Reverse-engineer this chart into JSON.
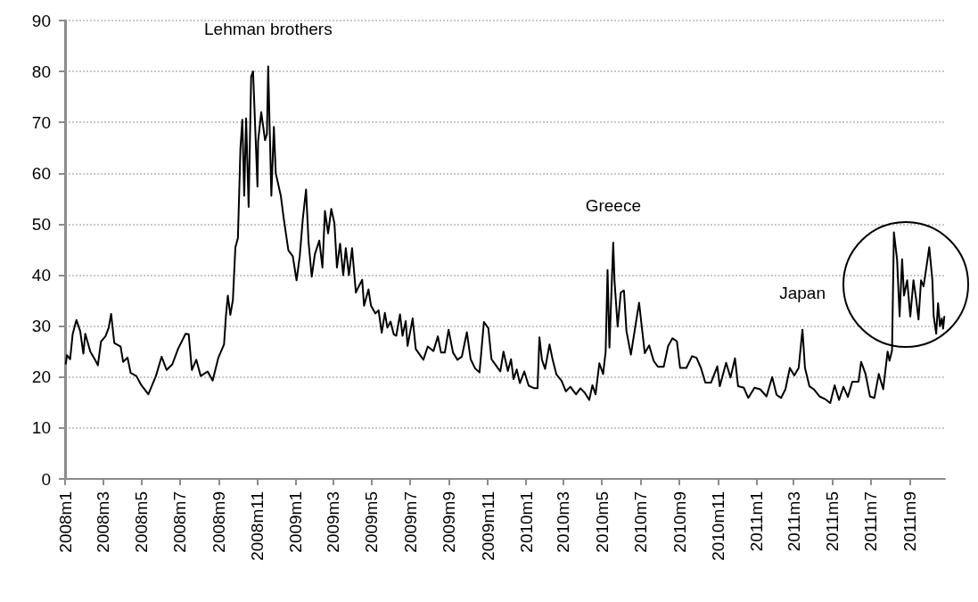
{
  "chart_data": {
    "type": "line",
    "x": [
      "2008-01-02",
      "2008-01-04",
      "2008-01-09",
      "2008-01-13",
      "2008-01-19",
      "2008-01-25",
      "2008-01-30",
      "2008-02-02",
      "2008-02-10",
      "2008-02-18",
      "2008-02-22",
      "2008-02-27",
      "2008-03-05",
      "2008-03-10",
      "2008-03-14",
      "2008-03-19",
      "2008-03-29",
      "2008-04-02",
      "2008-04-09",
      "2008-04-14",
      "2008-04-23",
      "2008-05-01",
      "2008-05-12",
      "2008-05-24",
      "2008-06-02",
      "2008-06-10",
      "2008-06-19",
      "2008-06-28",
      "2008-07-10",
      "2008-07-15",
      "2008-07-20",
      "2008-07-27",
      "2008-08-03",
      "2008-08-14",
      "2008-08-22",
      "2008-08-31",
      "2008-09-09",
      "2008-09-12",
      "2008-09-15",
      "2008-09-19",
      "2008-09-23",
      "2008-09-27",
      "2008-10-01",
      "2008-10-05",
      "2008-10-08",
      "2008-10-11",
      "2008-10-14",
      "2008-10-18",
      "2008-10-22",
      "2008-10-25",
      "2008-11-01",
      "2008-11-02",
      "2008-11-07",
      "2008-11-13",
      "2008-11-16",
      "2008-11-18",
      "2008-11-23",
      "2008-11-27",
      "2008-11-30",
      "2008-12-08",
      "2008-12-13",
      "2008-12-20",
      "2008-12-27",
      "2009-01-02",
      "2009-01-07",
      "2009-01-12",
      "2009-01-17",
      "2009-01-21",
      "2009-01-26",
      "2009-01-31",
      "2009-02-07",
      "2009-02-12",
      "2009-02-16",
      "2009-02-21",
      "2009-02-26",
      "2009-03-03",
      "2009-03-07",
      "2009-03-12",
      "2009-03-17",
      "2009-03-21",
      "2009-03-26",
      "2009-03-31",
      "2009-04-06",
      "2009-04-09",
      "2009-04-16",
      "2009-04-19",
      "2009-04-26",
      "2009-04-30",
      "2009-05-07",
      "2009-05-12",
      "2009-05-17",
      "2009-05-22",
      "2009-05-26",
      "2009-05-31",
      "2009-06-05",
      "2009-06-09",
      "2009-06-15",
      "2009-06-19",
      "2009-06-24",
      "2009-06-27",
      "2009-07-05",
      "2009-07-10",
      "2009-07-22",
      "2009-07-29",
      "2009-08-07",
      "2009-08-14",
      "2009-08-19",
      "2009-08-25",
      "2009-08-31",
      "2009-09-07",
      "2009-09-14",
      "2009-09-21",
      "2009-09-29",
      "2009-10-05",
      "2009-10-12",
      "2009-10-19",
      "2009-10-26",
      "2009-11-02",
      "2009-11-07",
      "2009-11-14",
      "2009-11-21",
      "2009-11-26",
      "2009-12-03",
      "2009-12-08",
      "2009-12-12",
      "2009-12-17",
      "2009-12-22",
      "2009-12-29",
      "2010-01-05",
      "2010-01-14",
      "2010-01-19",
      "2010-01-22",
      "2010-01-26",
      "2010-01-31",
      "2010-02-07",
      "2010-02-12",
      "2010-02-18",
      "2010-02-26",
      "2010-03-05",
      "2010-03-12",
      "2010-03-21",
      "2010-03-28",
      "2010-04-04",
      "2010-04-11",
      "2010-04-16",
      "2010-04-21",
      "2010-04-27",
      "2010-05-03",
      "2010-05-07",
      "2010-05-10",
      "2010-05-13",
      "2010-05-19",
      "2010-05-21",
      "2010-05-26",
      "2010-05-31",
      "2010-06-05",
      "2010-06-09",
      "2010-06-16",
      "2010-06-23",
      "2010-06-29",
      "2010-07-03",
      "2010-07-08",
      "2010-07-15",
      "2010-07-22",
      "2010-07-29",
      "2010-08-07",
      "2010-08-14",
      "2010-08-21",
      "2010-08-28",
      "2010-09-02",
      "2010-09-12",
      "2010-09-21",
      "2010-09-28",
      "2010-10-05",
      "2010-10-12",
      "2010-10-21",
      "2010-10-31",
      "2010-11-04",
      "2010-11-14",
      "2010-11-21",
      "2010-11-28",
      "2010-12-03",
      "2010-12-12",
      "2010-12-19",
      "2010-12-29",
      "2011-01-07",
      "2011-01-17",
      "2011-01-26",
      "2011-02-02",
      "2011-02-09",
      "2011-02-16",
      "2011-02-23",
      "2011-03-02",
      "2011-03-09",
      "2011-03-15",
      "2011-03-19",
      "2011-03-26",
      "2011-04-02",
      "2011-04-11",
      "2011-04-21",
      "2011-04-28",
      "2011-05-05",
      "2011-05-12",
      "2011-05-19",
      "2011-05-26",
      "2011-06-02",
      "2011-06-12",
      "2011-06-16",
      "2011-06-23",
      "2011-06-30",
      "2011-07-07",
      "2011-07-14",
      "2011-07-21",
      "2011-07-28",
      "2011-07-31",
      "2011-08-04",
      "2011-08-07",
      "2011-08-12",
      "2011-08-16",
      "2011-08-20",
      "2011-08-23",
      "2011-08-28",
      "2011-09-02",
      "2011-09-07",
      "2011-09-11",
      "2011-09-15",
      "2011-09-19",
      "2011-09-23",
      "2011-09-28",
      "2011-10-02",
      "2011-10-07",
      "2011-10-09",
      "2011-10-13",
      "2011-10-16",
      "2011-10-19",
      "2011-10-22",
      "2011-10-24",
      "2011-10-26"
    ],
    "series": [
      {
        "color": "#000000",
        "values": [
          22.5,
          24.3,
          23.5,
          28.4,
          31.2,
          29,
          24.6,
          28.5,
          25,
          23.3,
          22.3,
          27,
          28,
          29.6,
          32.4,
          26.7,
          26,
          23,
          23.8,
          20.8,
          20.2,
          18.4,
          16.6,
          20.2,
          24,
          21.4,
          22.5,
          25.5,
          28.5,
          28.4,
          21.4,
          23.4,
          20.2,
          21.1,
          19.3,
          23.8,
          26.4,
          32,
          36,
          32.2,
          35.1,
          45.5,
          47.3,
          64.9,
          70.5,
          55.6,
          70.8,
          53.4,
          79,
          80,
          57.4,
          66.3,
          72,
          66.5,
          67.7,
          81,
          55.6,
          69.1,
          60,
          55.6,
          50.8,
          44.9,
          43.7,
          39,
          43.7,
          51.2,
          56.8,
          46.5,
          39.7,
          44.1,
          46.8,
          41.5,
          52.6,
          48.2,
          53,
          50.2,
          41.5,
          46.2,
          40,
          45.3,
          40,
          45.3,
          36.6,
          37.4,
          39.1,
          34,
          37.2,
          34,
          32.5,
          33.1,
          28.7,
          32.6,
          29.7,
          30.9,
          28.4,
          28.1,
          32.3,
          28.1,
          31,
          26.1,
          31.5,
          25.5,
          23.4,
          26,
          25.1,
          28,
          24.8,
          24.8,
          29.3,
          24.8,
          23.4,
          24,
          28.8,
          23.5,
          21.7,
          20.9,
          30.8,
          29.6,
          23.5,
          22.3,
          21.1,
          25,
          21.2,
          23.5,
          19.6,
          21.5,
          18.8,
          21.1,
          18.3,
          17.8,
          17.8,
          27.8,
          23.4,
          21.6,
          26.4,
          23.4,
          20.5,
          19.3,
          17.2,
          18.1,
          16.6,
          17.8,
          16.9,
          15.5,
          18.4,
          16.6,
          22.7,
          20.6,
          25,
          41,
          25.8,
          46.4,
          39,
          29.9,
          36.6,
          37,
          29,
          24.4,
          29.9,
          34.6,
          30.2,
          24.7,
          26.2,
          23.2,
          22,
          22,
          26.1,
          27.6,
          27,
          21.8,
          21.8,
          24.1,
          23.8,
          21.8,
          18.9,
          18.9,
          22.1,
          18.2,
          22.8,
          19.9,
          23.7,
          18.2,
          17.9,
          15.9,
          17.9,
          17.6,
          16.2,
          20,
          16.5,
          15.9,
          17.6,
          21.8,
          20.3,
          21.8,
          29.3,
          21.8,
          18.2,
          17.6,
          16.2,
          15.6,
          14.9,
          18.4,
          15.5,
          18.1,
          16.1,
          19.1,
          19.1,
          23,
          20.6,
          16.2,
          15.9,
          20.6,
          17.6,
          25,
          23.2,
          25.2,
          48.4,
          43.1,
          31.9,
          43.1,
          36,
          39,
          31.9,
          39,
          35.5,
          31.3,
          39,
          37.8,
          42,
          45.5,
          39,
          32,
          28.5,
          34.5,
          30,
          31.5,
          29.5,
          32
        ]
      }
    ],
    "xlim": [
      "2008-01-01",
      "2011-10-27"
    ],
    "xticks": [
      {
        "value": "2008-01",
        "label": "2008m1"
      },
      {
        "value": "2008-03",
        "label": "2008m3"
      },
      {
        "value": "2008-05",
        "label": "2008m5"
      },
      {
        "value": "2008-07",
        "label": "2008m7"
      },
      {
        "value": "2008-09",
        "label": "2008m9"
      },
      {
        "value": "2008-11",
        "label": "2008m11"
      },
      {
        "value": "2009-01",
        "label": "2009m1"
      },
      {
        "value": "2009-03",
        "label": "2009m3"
      },
      {
        "value": "2009-05",
        "label": "2009m5"
      },
      {
        "value": "2009-07",
        "label": "2009m7"
      },
      {
        "value": "2009-09",
        "label": "2009m9"
      },
      {
        "value": "2009-11",
        "label": "2009m11"
      },
      {
        "value": "2010-01",
        "label": "2010m1"
      },
      {
        "value": "2010-03",
        "label": "2010m3"
      },
      {
        "value": "2010-05",
        "label": "2010m5"
      },
      {
        "value": "2010-07",
        "label": "2010m7"
      },
      {
        "value": "2010-09",
        "label": "2010m9"
      },
      {
        "value": "2010-11",
        "label": "2010m11"
      },
      {
        "value": "2011-01",
        "label": "2011m1"
      },
      {
        "value": "2011-03",
        "label": "2011m3"
      },
      {
        "value": "2011-05",
        "label": "2011m5"
      },
      {
        "value": "2011-07",
        "label": "2011m7"
      },
      {
        "value": "2011-09",
        "label": "2011m9"
      }
    ],
    "ylim": [
      0,
      90
    ],
    "yticks": [
      0,
      10,
      20,
      30,
      40,
      50,
      60,
      70,
      80,
      90
    ],
    "grid": "y",
    "annotations": [
      {
        "text": "Lehman brothers",
        "x": "2008-11-18",
        "y": 81
      },
      {
        "text": "Greece",
        "x": "2010-05-19",
        "y": 46.4
      },
      {
        "text": "Japan",
        "x": "2011-03-15",
        "y": 29.3
      }
    ]
  }
}
